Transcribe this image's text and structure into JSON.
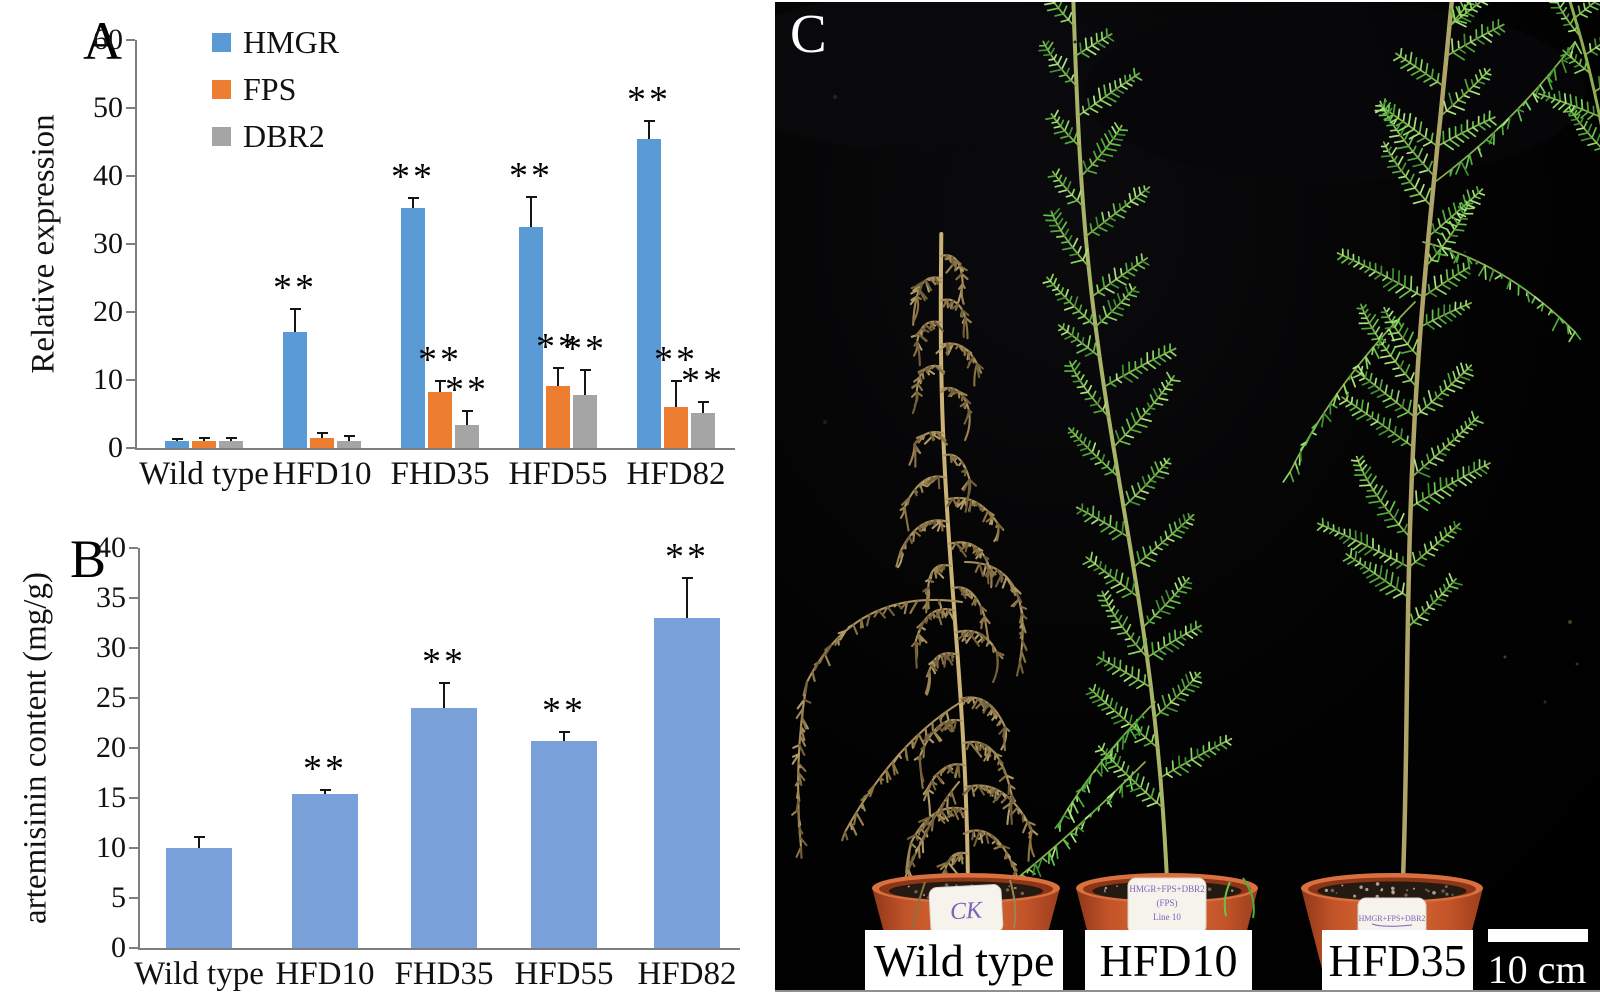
{
  "panel_a": {
    "letter": "A"
  },
  "panel_b": {
    "letter": "B"
  },
  "chart_data": [
    {
      "id": "panel_a",
      "type": "bar",
      "title": "",
      "xlabel": "",
      "ylabel": "Relative expression",
      "categories": [
        "Wild type",
        "HFD10",
        "FHD35",
        "HFD55",
        "HFD82"
      ],
      "series": [
        {
          "name": "HMGR",
          "color": "#5B9BD5",
          "values": [
            1.0,
            17.0,
            35.3,
            32.5,
            45.5
          ],
          "errors": [
            0.3,
            3.5,
            1.5,
            4.4,
            2.6
          ],
          "significance": [
            "",
            "**",
            "**",
            "**",
            "**"
          ]
        },
        {
          "name": "FPS",
          "color": "#ED7D31",
          "values": [
            1.0,
            1.4,
            8.2,
            9.1,
            6.1
          ],
          "errors": [
            0.4,
            0.8,
            1.7,
            2.6,
            3.8
          ],
          "significance": [
            "",
            "",
            "**",
            "**",
            "**"
          ]
        },
        {
          "name": "DBR2",
          "color": "#A5A5A5",
          "values": [
            1.0,
            1.1,
            3.4,
            7.8,
            5.2
          ],
          "errors": [
            0.5,
            0.6,
            2.0,
            3.6,
            1.6
          ],
          "significance": [
            "",
            "",
            "**",
            "**",
            "**"
          ]
        }
      ],
      "ylim": [
        0,
        60
      ],
      "yticks": [
        0,
        10,
        20,
        30,
        40,
        50,
        60
      ],
      "grid": false,
      "legend_position": "upper-left-inside"
    },
    {
      "id": "panel_b",
      "type": "bar",
      "title": "",
      "xlabel": "",
      "ylabel": "artemisinin content (mg/g)",
      "categories": [
        "Wild type",
        "HFD10",
        "FHD35",
        "HFD55",
        "HFD82"
      ],
      "series": [
        {
          "name": "artemisinin",
          "color": "#7AA0D9",
          "values": [
            10.0,
            15.4,
            24.0,
            20.7,
            33.0
          ],
          "errors": [
            1.1,
            0.4,
            2.5,
            0.9,
            4.0
          ],
          "significance": [
            "",
            "**",
            "**",
            "**",
            "**"
          ]
        }
      ],
      "ylim": [
        0,
        40
      ],
      "yticks": [
        0,
        5,
        10,
        15,
        20,
        25,
        30,
        35,
        40
      ],
      "grid": false,
      "legend_position": "none"
    }
  ],
  "panel_c": {
    "letter": "C",
    "labels": [
      "Wild type",
      "HFD10",
      "HFD35"
    ],
    "scale_bar_label": "10 cm",
    "pot_tags": [
      [
        "CK"
      ],
      [
        "HMGR+FPS+DBR2",
        "(FPS)",
        "Line 10"
      ],
      [
        "HMGR+FPS+DBR2"
      ]
    ],
    "colors": {
      "background": "#020202",
      "pot": "#c25429",
      "pot_rim": "#d8703f",
      "soil": "#241a12",
      "tag_text": "#7b63b8",
      "dried_stem": "#cbb377",
      "dried_rib": "#ab9360",
      "dried_foliage": [
        "#9c8452",
        "#8a7243",
        "#b09a66",
        "#73603a"
      ],
      "green_stem": "#a9b468",
      "green_rib": "#8fae52",
      "green_foliage": [
        "#4fae3a",
        "#66c44b",
        "#8ad963",
        "#3f9230",
        "#a8e57e"
      ]
    }
  }
}
